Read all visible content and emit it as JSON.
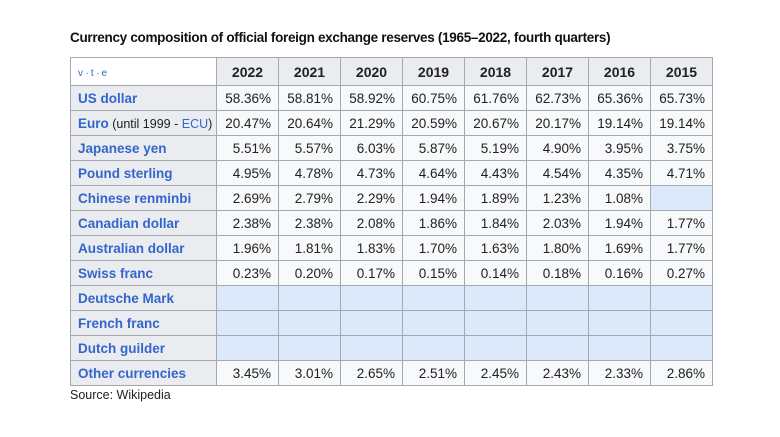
{
  "title": "Currency composition of official foreign exchange reserves (1965–2022, fourth quarters)",
  "source_label": "Source: Wikipedia",
  "vte": {
    "items": [
      "v",
      "t",
      "e"
    ],
    "separator": "·"
  },
  "colors": {
    "link_blue": "#3366cc",
    "header_bg": "#eaecf0",
    "cell_bg": "#f8f9fa",
    "empty_cell_bg": "#dbe9fb",
    "border": "#a2a9b1"
  },
  "chart_data": {
    "type": "table",
    "title": "Currency composition of official foreign exchange reserves (1965–2022, fourth quarters)",
    "columns": [
      "2022",
      "2021",
      "2020",
      "2019",
      "2018",
      "2017",
      "2016",
      "2015"
    ],
    "rows": [
      {
        "label": "US dollar",
        "values": [
          "58.36%",
          "58.81%",
          "58.92%",
          "60.75%",
          "61.76%",
          "62.73%",
          "65.36%",
          "65.73%"
        ]
      },
      {
        "label": "Euro",
        "note": {
          "pre": "(until 1999 - ",
          "link": "ECU",
          "post": ")"
        },
        "values": [
          "20.47%",
          "20.64%",
          "21.29%",
          "20.59%",
          "20.67%",
          "20.17%",
          "19.14%",
          "19.14%"
        ]
      },
      {
        "label": "Japanese yen",
        "values": [
          "5.51%",
          "5.57%",
          "6.03%",
          "5.87%",
          "5.19%",
          "4.90%",
          "3.95%",
          "3.75%"
        ]
      },
      {
        "label": "Pound sterling",
        "values": [
          "4.95%",
          "4.78%",
          "4.73%",
          "4.64%",
          "4.43%",
          "4.54%",
          "4.35%",
          "4.71%"
        ]
      },
      {
        "label": "Chinese renminbi",
        "values": [
          "2.69%",
          "2.79%",
          "2.29%",
          "1.94%",
          "1.89%",
          "1.23%",
          "1.08%",
          ""
        ]
      },
      {
        "label": "Canadian dollar",
        "values": [
          "2.38%",
          "2.38%",
          "2.08%",
          "1.86%",
          "1.84%",
          "2.03%",
          "1.94%",
          "1.77%"
        ]
      },
      {
        "label": "Australian dollar",
        "values": [
          "1.96%",
          "1.81%",
          "1.83%",
          "1.70%",
          "1.63%",
          "1.80%",
          "1.69%",
          "1.77%"
        ]
      },
      {
        "label": "Swiss franc",
        "values": [
          "0.23%",
          "0.20%",
          "0.17%",
          "0.15%",
          "0.14%",
          "0.18%",
          "0.16%",
          "0.27%"
        ]
      },
      {
        "label": "Deutsche Mark",
        "values": [
          "",
          "",
          "",
          "",
          "",
          "",
          "",
          ""
        ]
      },
      {
        "label": "French franc",
        "values": [
          "",
          "",
          "",
          "",
          "",
          "",
          "",
          ""
        ]
      },
      {
        "label": "Dutch guilder",
        "values": [
          "",
          "",
          "",
          "",
          "",
          "",
          "",
          ""
        ]
      },
      {
        "label": "Other currencies",
        "values": [
          "3.45%",
          "3.01%",
          "2.65%",
          "2.51%",
          "2.45%",
          "2.43%",
          "2.33%",
          "2.86%"
        ]
      }
    ]
  }
}
